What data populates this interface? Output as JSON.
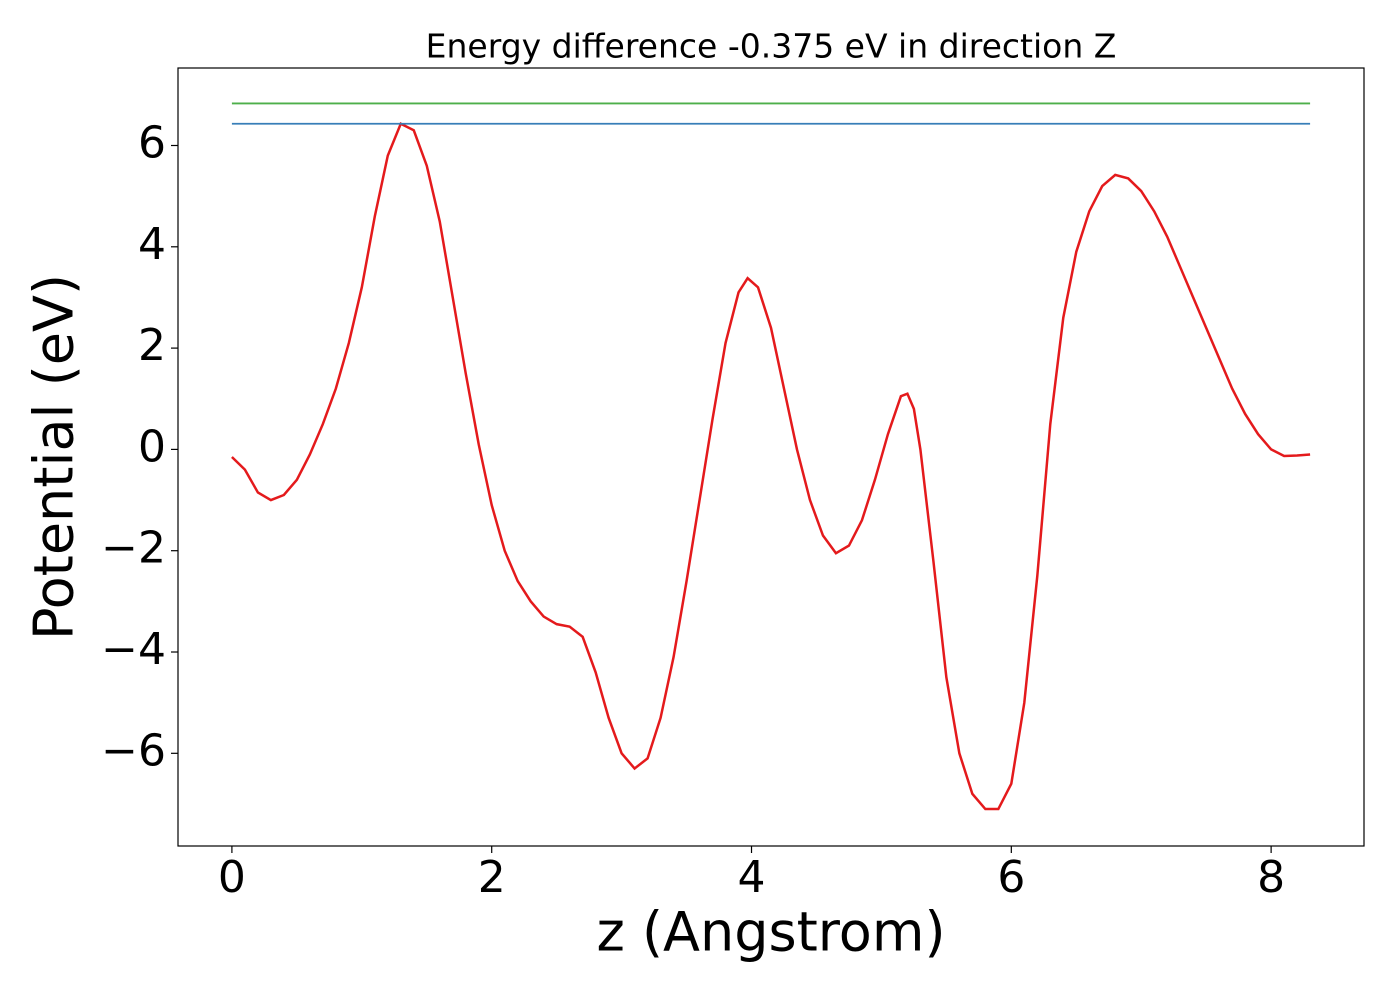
{
  "chart_data": {
    "type": "line",
    "title": "Energy difference -0.375 eV in direction Z",
    "x_label": "z (Angstrom)",
    "y_label": "Potential (eV)",
    "xlim": [
      -0.415,
      8.715
    ],
    "ylim": [
      -7.83,
      7.53
    ],
    "xticks": [
      0,
      2,
      4,
      6,
      8
    ],
    "yticks": [
      {
        "value": -6,
        "label": "−6"
      },
      {
        "value": -4,
        "label": "−4"
      },
      {
        "value": -2,
        "label": "−2"
      },
      0,
      2,
      4,
      6
    ],
    "series": [
      {
        "color": "#e41a1c",
        "x": [
          0,
          0.1,
          0.2,
          0.3,
          0.4,
          0.5,
          0.6,
          0.7,
          0.8,
          0.9,
          1.0,
          1.1,
          1.2,
          1.3,
          1.4,
          1.5,
          1.6,
          1.7,
          1.8,
          1.9,
          2.0,
          2.1,
          2.2,
          2.3,
          2.4,
          2.5,
          2.6,
          2.7,
          2.8,
          2.9,
          3.0,
          3.1,
          3.2,
          3.3,
          3.4,
          3.5,
          3.6,
          3.7,
          3.8,
          3.9,
          3.97,
          4.05,
          4.15,
          4.25,
          4.35,
          4.45,
          4.55,
          4.65,
          4.75,
          4.85,
          4.95,
          5.05,
          5.15,
          5.2,
          5.25,
          5.3,
          5.4,
          5.5,
          5.6,
          5.7,
          5.8,
          5.9,
          6.0,
          6.1,
          6.2,
          6.3,
          6.4,
          6.5,
          6.6,
          6.7,
          6.8,
          6.9,
          7.0,
          7.1,
          7.2,
          7.3,
          7.4,
          7.5,
          7.6,
          7.7,
          7.8,
          7.9,
          8.0,
          8.1,
          8.2,
          8.3
        ],
        "values": [
          -0.15,
          -0.4,
          -0.85,
          -1.0,
          -0.9,
          -0.6,
          -0.1,
          0.5,
          1.2,
          2.1,
          3.2,
          4.6,
          5.8,
          6.43,
          6.3,
          5.6,
          4.5,
          3.0,
          1.5,
          0.1,
          -1.1,
          -2.0,
          -2.6,
          -3.0,
          -3.3,
          -3.45,
          -3.5,
          -3.7,
          -4.4,
          -5.3,
          -6.0,
          -6.3,
          -6.1,
          -5.3,
          -4.1,
          -2.6,
          -1.0,
          0.6,
          2.1,
          3.1,
          3.38,
          3.2,
          2.4,
          1.2,
          0.0,
          -1.0,
          -1.7,
          -2.05,
          -1.9,
          -1.4,
          -0.6,
          0.3,
          1.05,
          1.1,
          0.8,
          0.0,
          -2.2,
          -4.5,
          -6.0,
          -6.8,
          -7.1,
          -7.1,
          -6.6,
          -5.0,
          -2.5,
          0.5,
          2.6,
          3.9,
          4.7,
          5.2,
          5.42,
          5.35,
          5.1,
          4.7,
          4.2,
          3.6,
          3.0,
          2.4,
          1.8,
          1.2,
          0.7,
          0.3,
          0.0,
          -0.13,
          -0.12,
          -0.1
        ]
      },
      {
        "color": "#377eb8",
        "x": [
          0,
          8.3
        ],
        "values": [
          6.43,
          6.43
        ]
      },
      {
        "color": "#4daf4a",
        "x": [
          0,
          8.3
        ],
        "values": [
          6.83,
          6.83
        ]
      }
    ]
  }
}
